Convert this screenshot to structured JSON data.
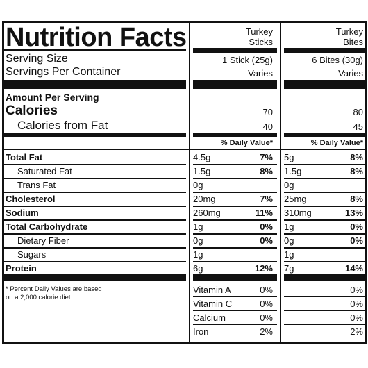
{
  "title": "Nutrition Facts",
  "products": [
    {
      "name_line1": "Turkey",
      "name_line2": "Sticks",
      "serving_size": "1 Stick (25g)",
      "servings": "Varies",
      "calories": "70",
      "calories_from_fat": "40"
    },
    {
      "name_line1": "Turkey",
      "name_line2": "Bites",
      "serving_size": "6 Bites (30g)",
      "servings": "Varies",
      "calories": "80",
      "calories_from_fat": "45"
    }
  ],
  "serving_size_label": "Serving Size",
  "servings_label": "Servings Per Container",
  "amount_label": "Amount Per Serving",
  "calories_label": "Calories",
  "calories_fat_label": "Calories from Fat",
  "dv_header": "% Daily Value*",
  "nutrients": [
    {
      "label": "Total Fat",
      "bold": true,
      "a_amt": "4.5g",
      "a_dv": "7%",
      "b_amt": "5g",
      "b_dv": "8%"
    },
    {
      "label": "Saturated Fat",
      "bold": false,
      "a_amt": "1.5g",
      "a_dv": "8%",
      "b_amt": "1.5g",
      "b_dv": "8%"
    },
    {
      "label": "Trans Fat",
      "bold": false,
      "a_amt": "0g",
      "a_dv": "",
      "b_amt": "0g",
      "b_dv": ""
    },
    {
      "label": "Cholesterol",
      "bold": true,
      "a_amt": "20mg",
      "a_dv": "7%",
      "b_amt": "25mg",
      "b_dv": "8%"
    },
    {
      "label": "Sodium",
      "bold": true,
      "a_amt": "260mg",
      "a_dv": "11%",
      "b_amt": "310mg",
      "b_dv": "13%"
    },
    {
      "label": "Total Carbohydrate",
      "bold": true,
      "a_amt": "1g",
      "a_dv": "0%",
      "b_amt": "1g",
      "b_dv": "0%"
    },
    {
      "label": "Dietary Fiber",
      "bold": false,
      "a_amt": "0g",
      "a_dv": "0%",
      "b_amt": "0g",
      "b_dv": "0%"
    },
    {
      "label": "Sugars",
      "bold": false,
      "a_amt": "1g",
      "a_dv": "",
      "b_amt": "1g",
      "b_dv": ""
    },
    {
      "label": "Protein",
      "bold": true,
      "a_amt": "6g",
      "a_dv": "12%",
      "b_amt": "7g",
      "b_dv": "14%"
    }
  ],
  "vitamins": [
    {
      "label": "Vitamin A",
      "a_dv": "0%",
      "b_dv": "0%"
    },
    {
      "label": "Vitamin C",
      "a_dv": "0%",
      "b_dv": "0%"
    },
    {
      "label": "Calcium",
      "a_dv": "0%",
      "b_dv": "0%"
    },
    {
      "label": "Iron",
      "a_dv": "2%",
      "b_dv": "2%"
    }
  ],
  "footnote_line1": "* Percent Daily Values are based",
  "footnote_line2": "on a 2,000 calorie diet."
}
